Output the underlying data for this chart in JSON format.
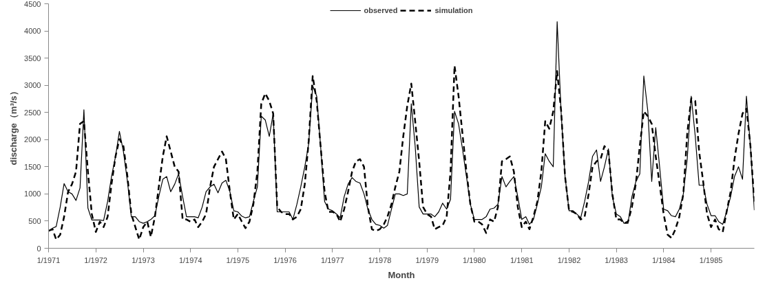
{
  "chart_data": {
    "type": "line",
    "xlabel": "Month",
    "ylabel": "discharge（m³/s）",
    "x": [
      "1971-01",
      "1971-02",
      "1971-03",
      "1971-04",
      "1971-05",
      "1971-06",
      "1971-07",
      "1971-08",
      "1971-09",
      "1971-10",
      "1971-11",
      "1971-12",
      "1972-01",
      "1972-02",
      "1972-03",
      "1972-04",
      "1972-05",
      "1972-06",
      "1972-07",
      "1972-08",
      "1972-09",
      "1972-10",
      "1972-11",
      "1972-12",
      "1973-01",
      "1973-02",
      "1973-03",
      "1973-04",
      "1973-05",
      "1973-06",
      "1973-07",
      "1973-08",
      "1973-09",
      "1973-10",
      "1973-11",
      "1973-12",
      "1974-01",
      "1974-02",
      "1974-03",
      "1974-04",
      "1974-05",
      "1974-06",
      "1974-07",
      "1974-08",
      "1974-09",
      "1974-10",
      "1974-11",
      "1974-12",
      "1975-01",
      "1975-02",
      "1975-03",
      "1975-04",
      "1975-05",
      "1975-06",
      "1975-07",
      "1975-08",
      "1975-09",
      "1975-10",
      "1975-11",
      "1975-12",
      "1976-01",
      "1976-02",
      "1976-03",
      "1976-04",
      "1976-05",
      "1976-06",
      "1976-07",
      "1976-08",
      "1976-09",
      "1976-10",
      "1976-11",
      "1976-12",
      "1977-01",
      "1977-02",
      "1977-03",
      "1977-04",
      "1977-05",
      "1977-06",
      "1977-07",
      "1977-08",
      "1977-09",
      "1977-10",
      "1977-11",
      "1977-12",
      "1978-01",
      "1978-02",
      "1978-03",
      "1978-04",
      "1978-05",
      "1978-06",
      "1978-07",
      "1978-08",
      "1978-09",
      "1978-10",
      "1978-11",
      "1978-12",
      "1979-01",
      "1979-02",
      "1979-03",
      "1979-04",
      "1979-05",
      "1979-06",
      "1979-07",
      "1979-08",
      "1979-09",
      "1979-10",
      "1979-11",
      "1979-12",
      "1980-01",
      "1980-02",
      "1980-03",
      "1980-04",
      "1980-05",
      "1980-06",
      "1980-07",
      "1980-08",
      "1980-09",
      "1980-10",
      "1980-11",
      "1980-12",
      "1981-01",
      "1981-02",
      "1981-03",
      "1981-04",
      "1981-05",
      "1981-06",
      "1981-07",
      "1981-08",
      "1981-09",
      "1981-10",
      "1981-11",
      "1981-12",
      "1982-01",
      "1982-02",
      "1982-03",
      "1982-04",
      "1982-05",
      "1982-06",
      "1982-07",
      "1982-08",
      "1982-09",
      "1982-10",
      "1982-11",
      "1982-12",
      "1983-01",
      "1983-02",
      "1983-03",
      "1983-04",
      "1983-05",
      "1983-06",
      "1983-07",
      "1983-08",
      "1983-09",
      "1983-10",
      "1983-11",
      "1983-12",
      "1984-01",
      "1984-02",
      "1984-03",
      "1984-04",
      "1984-05",
      "1984-06",
      "1984-07",
      "1984-08",
      "1984-09",
      "1984-10",
      "1984-11",
      "1984-12",
      "1985-01",
      "1985-02",
      "1985-03",
      "1985-04",
      "1985-05",
      "1985-06",
      "1985-07",
      "1985-08",
      "1985-09",
      "1985-10",
      "1985-11",
      "1985-12"
    ],
    "legend": "top",
    "grid": false,
    "xlim": [
      "1971-01",
      "1985-12"
    ],
    "xticks": [
      {
        "value": "1971-01",
        "label": "1/1971"
      },
      {
        "value": "1972-01",
        "label": "1/1972"
      },
      {
        "value": "1973-01",
        "label": "1/1973"
      },
      {
        "value": "1974-01",
        "label": "1/1974"
      },
      {
        "value": "1975-01",
        "label": "1/1975"
      },
      {
        "value": "1976-01",
        "label": "1/1976"
      },
      {
        "value": "1977-01",
        "label": "1/1977"
      },
      {
        "value": "1978-01",
        "label": "1/1978"
      },
      {
        "value": "1979-01",
        "label": "1/1979"
      },
      {
        "value": "1980-01",
        "label": "1/1980"
      },
      {
        "value": "1981-01",
        "label": "1/1981"
      },
      {
        "value": "1982-01",
        "label": "1/1982"
      },
      {
        "value": "1983-01",
        "label": "1/1983"
      },
      {
        "value": "1984-01",
        "label": "1/1984"
      },
      {
        "value": "1985-01",
        "label": "1/1985"
      }
    ],
    "ylim": [
      0,
      4500
    ],
    "yticks": [
      0,
      500,
      1000,
      1500,
      2000,
      2500,
      3000,
      3500,
      4000,
      4500
    ],
    "series": [
      {
        "name": "observed",
        "color": "#000000",
        "line_style": "solid",
        "values": [
          320,
          370,
          400,
          760,
          1190,
          1040,
          1000,
          880,
          1110,
          2550,
          740,
          520,
          520,
          520,
          510,
          860,
          1320,
          1690,
          2150,
          1780,
          1230,
          580,
          580,
          490,
          460,
          490,
          530,
          600,
          950,
          1270,
          1320,
          1040,
          1180,
          1370,
          950,
          580,
          580,
          580,
          560,
          760,
          1040,
          1130,
          1180,
          1020,
          1200,
          1250,
          1040,
          690,
          670,
          590,
          560,
          580,
          860,
          1130,
          2430,
          2360,
          2060,
          2480,
          670,
          670,
          670,
          670,
          530,
          810,
          1130,
          1500,
          1920,
          2990,
          2800,
          1880,
          860,
          720,
          690,
          630,
          560,
          950,
          1180,
          1300,
          1230,
          1200,
          1000,
          720,
          530,
          440,
          420,
          370,
          420,
          720,
          1000,
          1000,
          970,
          1000,
          2660,
          1880,
          760,
          630,
          630,
          630,
          580,
          670,
          830,
          720,
          900,
          2520,
          2290,
          1830,
          1320,
          810,
          530,
          530,
          530,
          580,
          720,
          740,
          810,
          1320,
          1130,
          1230,
          1320,
          950,
          530,
          580,
          440,
          530,
          810,
          1130,
          1740,
          1600,
          1500,
          4170,
          2480,
          1320,
          690,
          690,
          630,
          560,
          860,
          1230,
          1690,
          1810,
          1230,
          1500,
          1830,
          950,
          630,
          580,
          460,
          460,
          950,
          1230,
          1370,
          3170,
          2520,
          1230,
          2220,
          1500,
          720,
          690,
          600,
          580,
          720,
          1000,
          1640,
          2800,
          2060,
          1160,
          1160,
          810,
          600,
          600,
          490,
          440,
          670,
          950,
          1320,
          1500,
          1270,
          2800,
          1880,
          700
        ]
      },
      {
        "name": "simulation",
        "color": "#000000",
        "line_style": "dashed",
        "values": [
          320,
          350,
          160,
          250,
          580,
          1040,
          1180,
          1410,
          2290,
          2340,
          1410,
          630,
          300,
          490,
          390,
          580,
          1180,
          1690,
          2010,
          1880,
          1320,
          630,
          390,
          160,
          390,
          490,
          210,
          580,
          1130,
          1690,
          2060,
          1780,
          1500,
          1410,
          530,
          530,
          490,
          530,
          390,
          490,
          630,
          1130,
          1500,
          1640,
          1780,
          1640,
          1040,
          530,
          630,
          490,
          370,
          490,
          810,
          1410,
          2660,
          2850,
          2710,
          2480,
          760,
          670,
          630,
          630,
          530,
          580,
          720,
          1180,
          1970,
          3170,
          2710,
          1880,
          1040,
          670,
          670,
          630,
          490,
          720,
          1040,
          1410,
          1600,
          1640,
          1500,
          760,
          350,
          320,
          350,
          440,
          580,
          810,
          1130,
          1410,
          2060,
          2620,
          3030,
          2340,
          1600,
          760,
          630,
          580,
          350,
          390,
          420,
          580,
          1410,
          3360,
          2800,
          2110,
          1410,
          810,
          490,
          490,
          440,
          280,
          530,
          490,
          760,
          1600,
          1640,
          1690,
          1410,
          760,
          390,
          490,
          350,
          580,
          860,
          1410,
          2340,
          2200,
          2520,
          3260,
          2520,
          1320,
          690,
          670,
          630,
          530,
          580,
          1000,
          1500,
          1600,
          1640,
          1880,
          1780,
          1000,
          530,
          530,
          460,
          490,
          760,
          1200,
          1880,
          2520,
          2430,
          2290,
          1690,
          1180,
          630,
          250,
          190,
          350,
          580,
          1000,
          2110,
          2760,
          2710,
          1780,
          1230,
          630,
          390,
          530,
          350,
          300,
          670,
          1040,
          1640,
          2110,
          2480,
          2570,
          1880,
          860
        ]
      }
    ]
  }
}
